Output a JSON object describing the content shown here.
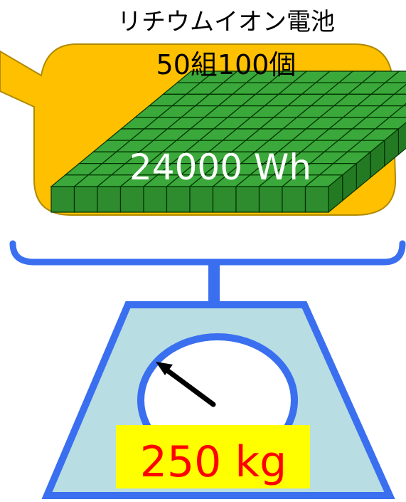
{
  "battery": {
    "type_label": "リチウムイオン電池",
    "count_label": "50組100個",
    "energy_label": "24000 Wh"
  },
  "scale": {
    "weight_label": "250 kg"
  },
  "colors": {
    "bubble_fill": "#ffc000",
    "bubble_stroke": "#b08a00",
    "cell_fill": "#2e8b2e",
    "cell_top": "#3aa83a",
    "cell_stroke": "#003300",
    "scale_stroke": "#3a6ff0",
    "scale_body": "#b8dde2",
    "dial_fill": "#ffffff",
    "needle": "#000000",
    "label_bg": "#ffff00",
    "weight_text": "#ff0000"
  }
}
